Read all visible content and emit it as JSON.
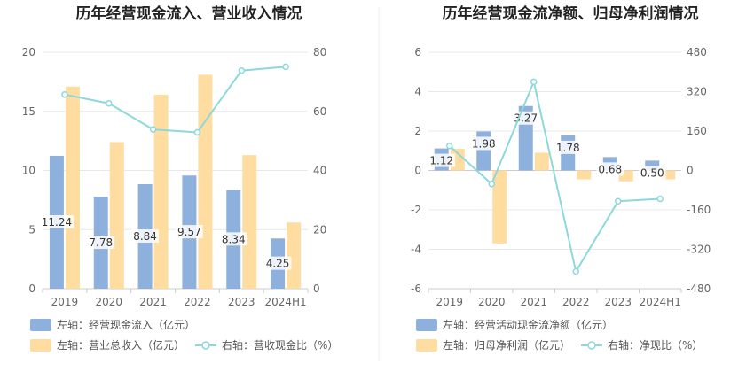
{
  "left_chart": {
    "title": "历年经营现金流入、营业收入情况",
    "legend": [
      "左轴：经营现金流入（亿元）",
      "左轴：营业总收入（亿元）",
      "右轴：营收现金比（%）"
    ]
  },
  "right_chart": {
    "title": "历年经营现金流净额、归母净利润情况",
    "legend": [
      "左轴：经营活动现金流净额（亿元）",
      "左轴：归母净利润（亿元）",
      "右轴：净现比（%）"
    ]
  },
  "colors": {
    "blue": "#8eb0dd",
    "orange": "#ffdca0",
    "line": "#8dd8dc"
  },
  "chart_data": [
    {
      "type": "bar",
      "title": "历年经营现金流入、营业收入情况",
      "categories": [
        "2019",
        "2020",
        "2021",
        "2022",
        "2023",
        "2024H1"
      ],
      "y_left": {
        "min": 0,
        "max": 20,
        "ticks": [
          0,
          5,
          10,
          15,
          20
        ]
      },
      "y_right": {
        "min": 0,
        "max": 80,
        "ticks": [
          0,
          20,
          40,
          60,
          80
        ]
      },
      "series": [
        {
          "name": "左轴：经营现金流入（亿元）",
          "axis": "left",
          "type": "bar",
          "values": [
            11.24,
            7.78,
            8.84,
            9.57,
            8.34,
            4.25
          ],
          "labels": [
            "11.24",
            "7.78",
            "8.84",
            "9.57",
            "8.34",
            "4.25"
          ]
        },
        {
          "name": "左轴：营业总收入（亿元）",
          "axis": "left",
          "type": "bar",
          "values": [
            17.1,
            12.4,
            16.4,
            18.1,
            11.3,
            5.6
          ]
        },
        {
          "name": "右轴：营收现金比（%）",
          "axis": "right",
          "type": "line",
          "values": [
            65.7,
            62.7,
            53.9,
            52.9,
            73.8,
            75.1
          ]
        }
      ],
      "grid": true,
      "legend_position": "bottom"
    },
    {
      "type": "bar",
      "title": "历年经营现金流净额、归母净利润情况",
      "categories": [
        "2019",
        "2020",
        "2021",
        "2022",
        "2023",
        "2024H1"
      ],
      "y_left": {
        "min": -6,
        "max": 6,
        "ticks": [
          -6,
          -4,
          -2,
          0,
          2,
          4,
          6
        ]
      },
      "y_right": {
        "min": -480,
        "max": 480,
        "ticks": [
          -480,
          -320,
          -160,
          0,
          160,
          320,
          480
        ]
      },
      "series": [
        {
          "name": "左轴：经营活动现金流净额（亿元）",
          "axis": "left",
          "type": "bar",
          "values": [
            1.12,
            1.98,
            3.27,
            1.78,
            0.68,
            0.5
          ],
          "labels": [
            "1.12",
            "1.98",
            "3.27",
            "1.78",
            "0.68",
            "0.50"
          ]
        },
        {
          "name": "左轴：归母净利润（亿元）",
          "axis": "left",
          "type": "bar",
          "values": [
            1.1,
            -3.7,
            0.9,
            -0.45,
            -0.55,
            -0.45
          ]
        },
        {
          "name": "右轴：净现比（%）",
          "axis": "right",
          "type": "line",
          "values": [
            100,
            -55,
            360,
            -410,
            -125,
            -115
          ]
        }
      ],
      "grid": true,
      "legend_position": "bottom"
    }
  ]
}
